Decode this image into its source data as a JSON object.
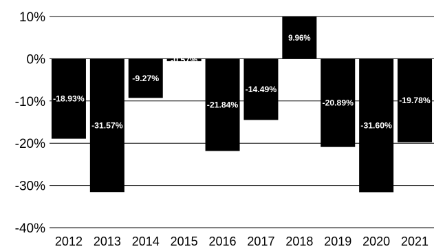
{
  "chart_data": {
    "type": "bar",
    "categories": [
      "2012",
      "2013",
      "2014",
      "2015",
      "2016",
      "2017",
      "2018",
      "2019",
      "2020",
      "2021"
    ],
    "values": [
      -18.93,
      -31.57,
      -9.27,
      -0.57,
      -21.84,
      -14.49,
      9.96,
      -20.89,
      -31.6,
      -19.78
    ],
    "data_labels": [
      "-18.93%",
      "-31.57%",
      "-9.27%",
      "-0.57%",
      "-21.84%",
      "-14.49%",
      "9.96%",
      "-20.89%",
      "-31.60%",
      "-19.78%"
    ],
    "yticks": [
      10,
      0,
      -10,
      -20,
      -30,
      -40
    ],
    "ytick_labels": [
      "10%",
      "0%",
      "-10%",
      "-20%",
      "-30%",
      "-40%"
    ],
    "ylim": [
      -40,
      10
    ],
    "grid": "horizontal",
    "bar_color": "#000000",
    "label_color": "#ffffff",
    "title": "",
    "xlabel": "",
    "ylabel": ""
  }
}
